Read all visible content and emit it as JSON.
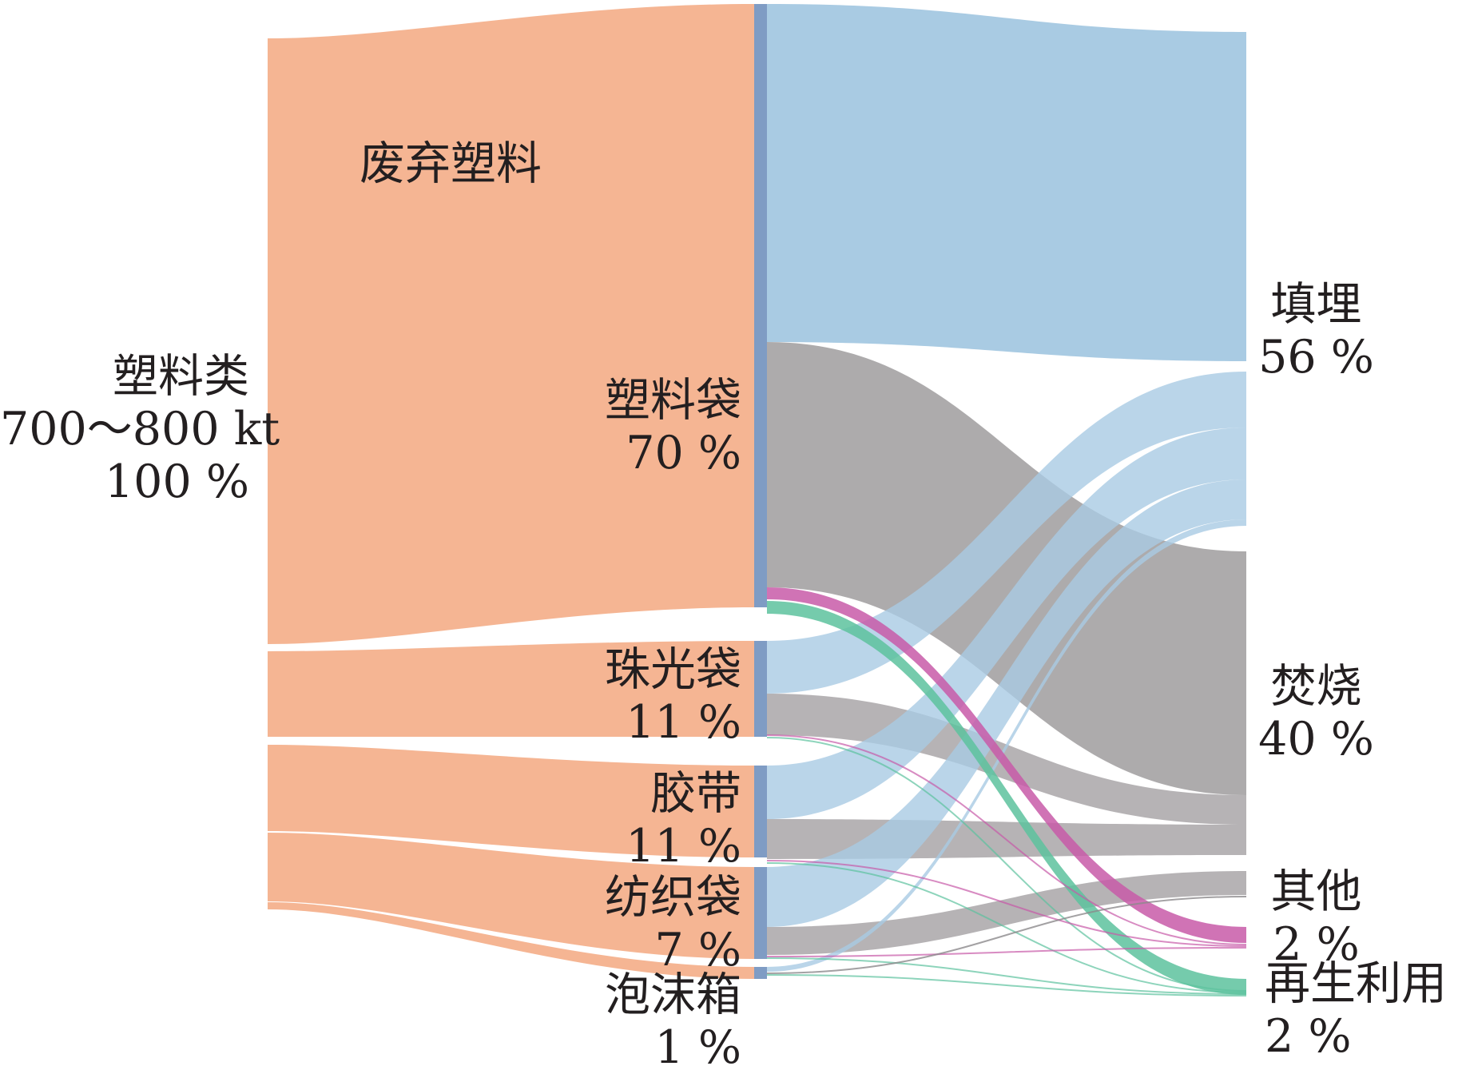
{
  "title": "废弃塑料",
  "source": {
    "name": "塑料类",
    "amount": "700～800 kt",
    "pct": "100 %"
  },
  "categories": [
    {
      "name": "塑料袋",
      "pct": "70 %"
    },
    {
      "name": "珠光袋",
      "pct": "11 %"
    },
    {
      "name": "胶带",
      "pct": "11 %"
    },
    {
      "name": "纺织袋",
      "pct": "7 %"
    },
    {
      "name": "泡沫箱",
      "pct": "1 %"
    }
  ],
  "destinations": [
    {
      "name": "填埋",
      "pct": "56 %"
    },
    {
      "name": "焚烧",
      "pct": "40 %"
    },
    {
      "name": "其他",
      "pct": "2 %"
    },
    {
      "name": "再生利用",
      "pct": "2 %"
    }
  ],
  "colors": {
    "source": "#f5b593",
    "category_bar": "#7f9cc4",
    "landfill": "#a9cbe3",
    "incineration": "#a9a6a8",
    "other": "#c85aa8",
    "recycling": "#5dc29e"
  }
}
